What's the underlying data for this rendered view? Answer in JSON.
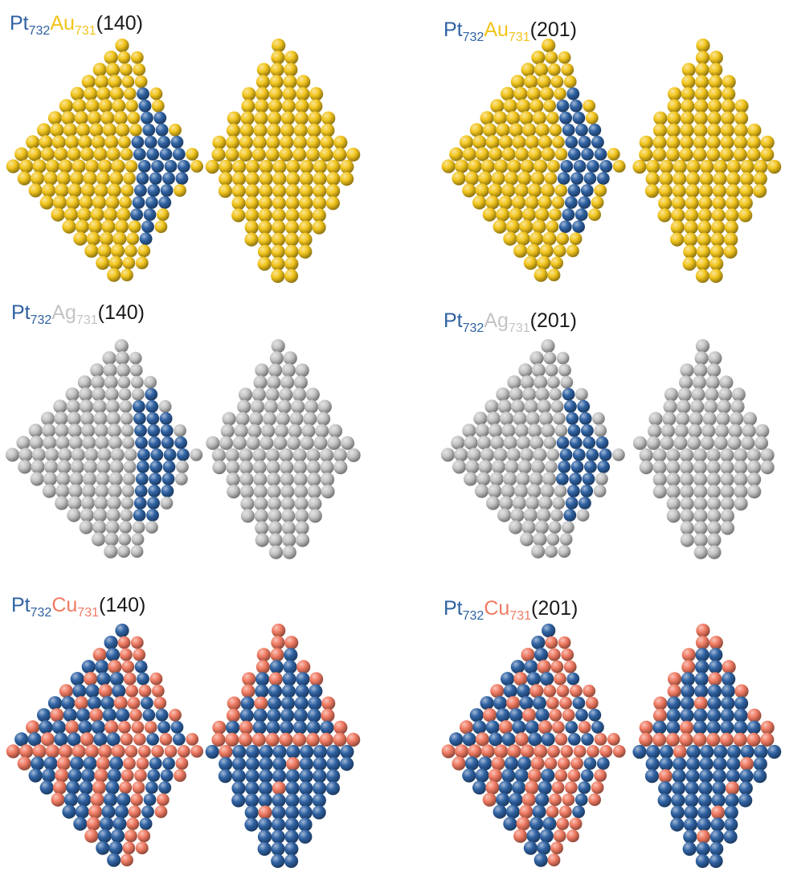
{
  "colors": {
    "Pt": "#2f62a3",
    "Au": "#f2c51c",
    "Ag": "#c4c4c4",
    "Cu": "#f07a62",
    "miller_text": "#1a1a1a"
  },
  "panels": [
    {
      "id": "pt-au-140",
      "host": "Pt",
      "host_count": "732",
      "guest": "Au",
      "guest_count": "731",
      "miller": "(140)",
      "guest_color": "Au",
      "pattern": "au"
    },
    {
      "id": "pt-au-201",
      "host": "Pt",
      "host_count": "732",
      "guest": "Au",
      "guest_count": "731",
      "miller": "(201)",
      "guest_color": "Au",
      "pattern": "au"
    },
    {
      "id": "pt-ag-140",
      "host": "Pt",
      "host_count": "732",
      "guest": "Ag",
      "guest_count": "731",
      "miller": "(140)",
      "guest_color": "Ag",
      "pattern": "ag"
    },
    {
      "id": "pt-ag-201",
      "host": "Pt",
      "host_count": "732",
      "guest": "Ag",
      "guest_count": "731",
      "miller": "(201)",
      "guest_color": "Ag",
      "pattern": "ag"
    },
    {
      "id": "pt-cu-140",
      "host": "Pt",
      "host_count": "732",
      "guest": "Cu",
      "guest_count": "731",
      "miller": "(140)",
      "guest_color": "Cu",
      "pattern": "cu"
    },
    {
      "id": "pt-cu-201",
      "host": "Pt",
      "host_count": "732",
      "guest": "Cu",
      "guest_count": "731",
      "miller": "(201)",
      "guest_color": "Cu",
      "pattern": "cu"
    }
  ]
}
